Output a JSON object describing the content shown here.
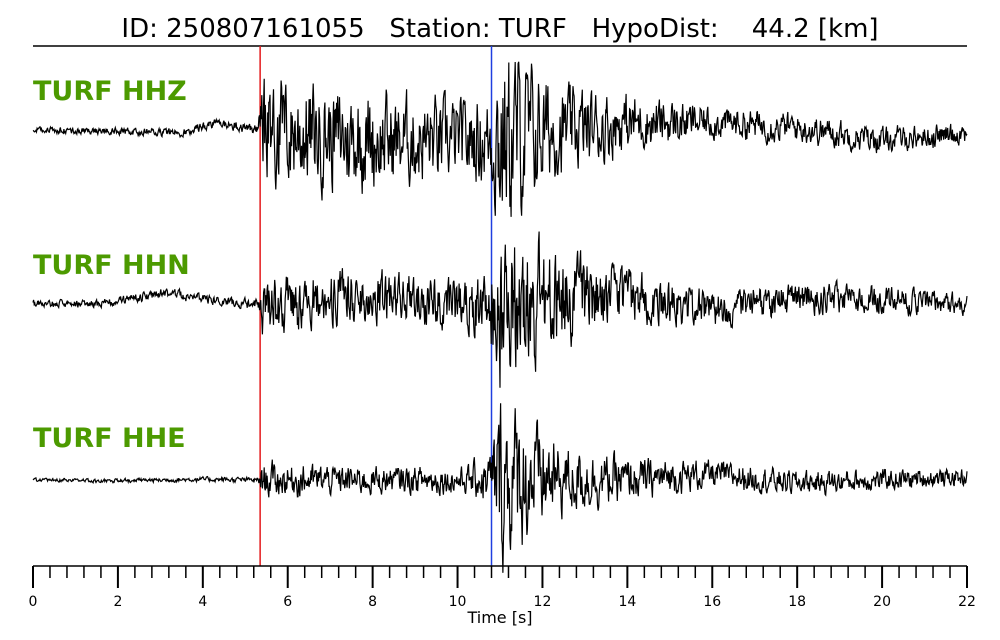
{
  "chart_data": {
    "type": "line",
    "title": "ID: 250807161055   Station: TURF   HypoDist:    44.2 [km]",
    "xlabel": "Time [s]",
    "xlim": [
      0,
      22
    ],
    "x_ticks": [
      0,
      2,
      4,
      6,
      8,
      10,
      12,
      14,
      16,
      18,
      20,
      22
    ],
    "x_tick_labels": [
      "0",
      "2",
      "4",
      "6",
      "8",
      "10",
      "12",
      "14",
      "16",
      "18",
      "20",
      "22"
    ],
    "minor_tick_step": 0.4,
    "label_color": "#4c9a00",
    "trace_color": "#000000",
    "markers": [
      {
        "phase": "P",
        "time": 5.35,
        "color": "#e41a1c"
      },
      {
        "phase": "S",
        "time": 10.8,
        "color": "#1f3fe0"
      }
    ],
    "series": [
      {
        "name": "TURF HHZ",
        "envelope": [
          [
            0,
            0.02
          ],
          [
            5.3,
            0.03
          ],
          [
            5.4,
            0.34
          ],
          [
            8,
            0.3
          ],
          [
            10.2,
            0.24
          ],
          [
            10.75,
            0.28
          ],
          [
            11.0,
            0.6
          ],
          [
            11.6,
            0.45
          ],
          [
            12.3,
            0.28
          ],
          [
            14,
            0.18
          ],
          [
            16,
            0.1
          ],
          [
            22,
            0.07
          ]
        ],
        "drift": [
          [
            0,
            0
          ],
          [
            2,
            -0.01
          ],
          [
            3.5,
            -0.02
          ],
          [
            4.3,
            0.05
          ],
          [
            5.3,
            0.0
          ],
          [
            8,
            -0.08
          ],
          [
            10.5,
            -0.08
          ],
          [
            14,
            0.05
          ],
          [
            16,
            0.06
          ],
          [
            18,
            0.02
          ],
          [
            20,
            -0.08
          ],
          [
            22,
            -0.02
          ]
        ]
      },
      {
        "name": "TURF HHN",
        "envelope": [
          [
            0,
            0.02
          ],
          [
            5.3,
            0.03
          ],
          [
            5.4,
            0.17
          ],
          [
            8,
            0.14
          ],
          [
            10.2,
            0.14
          ],
          [
            10.75,
            0.2
          ],
          [
            11.0,
            0.48
          ],
          [
            11.6,
            0.38
          ],
          [
            12.5,
            0.25
          ],
          [
            14,
            0.15
          ],
          [
            16,
            0.1
          ],
          [
            22,
            0.06
          ]
        ],
        "drift": [
          [
            0,
            0
          ],
          [
            1.5,
            -0.01
          ],
          [
            3.1,
            0.07
          ],
          [
            4.5,
            0.01
          ],
          [
            5.3,
            -0.01
          ],
          [
            8,
            0.04
          ],
          [
            10.5,
            -0.01
          ],
          [
            14,
            0.05
          ],
          [
            16,
            -0.04
          ],
          [
            18,
            0.03
          ],
          [
            20,
            0.02
          ],
          [
            22,
            -0.01
          ]
        ]
      },
      {
        "name": "TURF HHE",
        "envelope": [
          [
            0,
            0.01
          ],
          [
            5.3,
            0.015
          ],
          [
            5.4,
            0.1
          ],
          [
            8,
            0.08
          ],
          [
            10.2,
            0.08
          ],
          [
            10.75,
            0.15
          ],
          [
            11.0,
            0.5
          ],
          [
            11.6,
            0.35
          ],
          [
            12.5,
            0.2
          ],
          [
            14,
            0.12
          ],
          [
            16,
            0.08
          ],
          [
            22,
            0.05
          ]
        ],
        "drift": [
          [
            0,
            0
          ],
          [
            2,
            -0.005
          ],
          [
            4,
            0.005
          ],
          [
            5.3,
            0.0
          ],
          [
            8,
            0.0
          ],
          [
            10.5,
            0.0
          ],
          [
            14,
            0.0
          ],
          [
            16,
            0.04
          ],
          [
            18,
            -0.02
          ],
          [
            20,
            0.0
          ],
          [
            22,
            0.02
          ]
        ]
      }
    ]
  }
}
